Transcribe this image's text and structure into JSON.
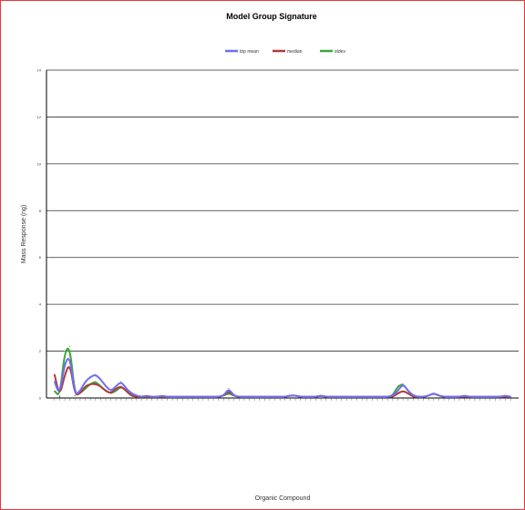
{
  "chart_data": {
    "type": "line",
    "title": "Model Group Signature",
    "xlabel": "Organic Compound",
    "ylabel": "Mass Response (ng)",
    "ylim": [
      0,
      14
    ],
    "yticks": [
      0,
      2,
      4,
      6,
      8,
      10,
      12,
      14
    ],
    "grid": true,
    "legend_position": "top-center",
    "categories": [
      "",
      "",
      "",
      "",
      "",
      "",
      "",
      "",
      "",
      "",
      "",
      "",
      "",
      "",
      "",
      "",
      "",
      "",
      "",
      "",
      "",
      "",
      "",
      "",
      "",
      "",
      "",
      "",
      "",
      "",
      "",
      "",
      "",
      "",
      "",
      "",
      "",
      "",
      "",
      "",
      "",
      "",
      "",
      "",
      "",
      "",
      "",
      "",
      "",
      "",
      "",
      "",
      "",
      "",
      "",
      "",
      "",
      "",
      "",
      "",
      "",
      "",
      "",
      "",
      "",
      "",
      "",
      "",
      "",
      "",
      "",
      "",
      "",
      "",
      "",
      "",
      "",
      "",
      "",
      "",
      "",
      "",
      "",
      "",
      "",
      "",
      "",
      "",
      "",
      ""
    ],
    "series": [
      {
        "name": "trip mean",
        "color": "#6f6ff2",
        "values": [
          0.7,
          0.1,
          1.5,
          1.8,
          0.1,
          0.3,
          0.7,
          0.9,
          1.0,
          0.8,
          0.5,
          0.3,
          0.5,
          0.7,
          0.4,
          0.2,
          0.1,
          0.05,
          0.1,
          0.05,
          0.05,
          0.1,
          0.05,
          0.05,
          0.05,
          0.05,
          0.05,
          0.05,
          0.05,
          0.05,
          0.05,
          0.05,
          0.05,
          0.1,
          0.4,
          0.1,
          0.05,
          0.05,
          0.05,
          0.05,
          0.05,
          0.05,
          0.05,
          0.05,
          0.05,
          0.05,
          0.1,
          0.1,
          0.05,
          0.05,
          0.05,
          0.05,
          0.1,
          0.05,
          0.05,
          0.05,
          0.05,
          0.05,
          0.05,
          0.05,
          0.05,
          0.05,
          0.05,
          0.05,
          0.05,
          0.05,
          0.1,
          0.3,
          0.6,
          0.3,
          0.1,
          0.05,
          0.05,
          0.1,
          0.2,
          0.1,
          0.05,
          0.05,
          0.05,
          0.05,
          0.1,
          0.05,
          0.05,
          0.05,
          0.05,
          0.05,
          0.05,
          0.05,
          0.1,
          0.05
        ]
      },
      {
        "name": "median",
        "color": "#b03a3a",
        "values": [
          1.0,
          0.05,
          1.0,
          1.5,
          0.1,
          0.2,
          0.5,
          0.6,
          0.6,
          0.5,
          0.3,
          0.2,
          0.4,
          0.5,
          0.3,
          0.1,
          0.05,
          0.05,
          0.05,
          0.05,
          0.05,
          0.05,
          0.05,
          0.05,
          0.05,
          0.05,
          0.05,
          0.05,
          0.05,
          0.05,
          0.05,
          0.05,
          0.05,
          0.1,
          0.3,
          0.1,
          0.05,
          0.05,
          0.05,
          0.05,
          0.05,
          0.05,
          0.05,
          0.05,
          0.05,
          0.05,
          0.1,
          0.1,
          0.05,
          0.05,
          0.05,
          0.05,
          0.1,
          0.05,
          0.05,
          0.05,
          0.05,
          0.05,
          0.05,
          0.05,
          0.05,
          0.05,
          0.05,
          0.05,
          0.05,
          0.05,
          0.05,
          0.2,
          0.3,
          0.2,
          0.05,
          0.05,
          0.05,
          0.1,
          0.2,
          0.1,
          0.05,
          0.05,
          0.05,
          0.05,
          0.05,
          0.05,
          0.05,
          0.05,
          0.05,
          0.05,
          0.05,
          0.05,
          0.05,
          0.05
        ]
      },
      {
        "name": "stdev",
        "color": "#3aa63a",
        "values": [
          0.3,
          0.05,
          2.0,
          2.2,
          0.1,
          0.2,
          0.4,
          0.6,
          0.7,
          0.5,
          0.3,
          0.2,
          0.3,
          0.5,
          0.3,
          0.1,
          0.05,
          0.05,
          0.05,
          0.05,
          0.05,
          0.05,
          0.05,
          0.05,
          0.05,
          0.05,
          0.05,
          0.05,
          0.05,
          0.05,
          0.05,
          0.05,
          0.05,
          0.1,
          0.2,
          0.1,
          0.05,
          0.05,
          0.05,
          0.05,
          0.05,
          0.05,
          0.05,
          0.05,
          0.05,
          0.05,
          0.1,
          0.1,
          0.05,
          0.05,
          0.05,
          0.05,
          0.1,
          0.05,
          0.05,
          0.05,
          0.05,
          0.05,
          0.05,
          0.05,
          0.05,
          0.05,
          0.05,
          0.05,
          0.05,
          0.05,
          0.1,
          0.5,
          0.6,
          0.3,
          0.1,
          0.05,
          0.05,
          0.1,
          0.2,
          0.1,
          0.05,
          0.05,
          0.05,
          0.05,
          0.1,
          0.05,
          0.05,
          0.05,
          0.05,
          0.05,
          0.05,
          0.05,
          0.1,
          0.05
        ]
      }
    ]
  }
}
